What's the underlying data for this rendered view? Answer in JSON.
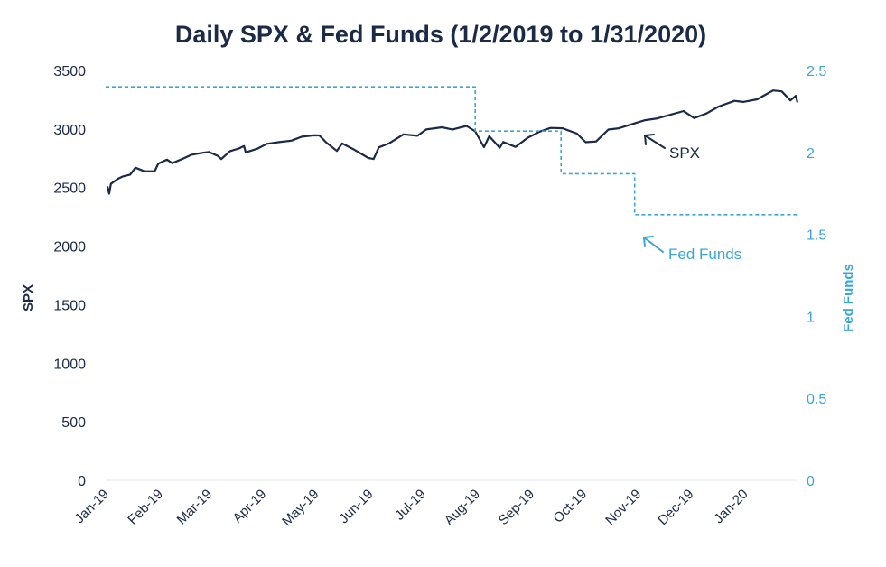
{
  "chart_data": {
    "type": "line",
    "title": "Daily SPX & Fed Funds (1/2/2019 to 1/31/2020)",
    "x_tick_labels": [
      "Jan-19",
      "Feb-19",
      "Mar-19",
      "Apr-19",
      "May-19",
      "Jun-19",
      "Jul-19",
      "Aug-19",
      "Sep-19",
      "Oct-19",
      "Nov-19",
      "Dec-19",
      "Jan-20"
    ],
    "x_range": [
      "2019-01-01",
      "2020-01-31"
    ],
    "y_left": {
      "label": "SPX",
      "ylim": [
        0,
        3500
      ],
      "ticks": [
        0,
        500,
        1000,
        1500,
        2000,
        2500,
        3000,
        3500
      ]
    },
    "y_right": {
      "label": "Fed Funds",
      "ylim": [
        0,
        2.5
      ],
      "ticks": [
        "0",
        "0.5",
        "1",
        "1.5",
        "2",
        "2.5"
      ]
    },
    "colors": {
      "spx": "#1b2a47",
      "fed": "#3aa6d8"
    },
    "series": [
      {
        "name": "SPX",
        "axis": "left",
        "style": "solid",
        "points": [
          [
            "2019-01-02",
            2510
          ],
          [
            "2019-01-03",
            2448
          ],
          [
            "2019-01-04",
            2531
          ],
          [
            "2019-01-08",
            2575
          ],
          [
            "2019-01-11",
            2596
          ],
          [
            "2019-01-15",
            2610
          ],
          [
            "2019-01-18",
            2670
          ],
          [
            "2019-01-23",
            2639
          ],
          [
            "2019-01-29",
            2640
          ],
          [
            "2019-01-31",
            2704
          ],
          [
            "2019-02-05",
            2738
          ],
          [
            "2019-02-08",
            2708
          ],
          [
            "2019-02-14",
            2745
          ],
          [
            "2019-02-19",
            2780
          ],
          [
            "2019-02-25",
            2796
          ],
          [
            "2019-03-01",
            2803
          ],
          [
            "2019-03-06",
            2771
          ],
          [
            "2019-03-08",
            2743
          ],
          [
            "2019-03-13",
            2811
          ],
          [
            "2019-03-18",
            2833
          ],
          [
            "2019-03-21",
            2854
          ],
          [
            "2019-03-22",
            2800
          ],
          [
            "2019-03-29",
            2834
          ],
          [
            "2019-04-03",
            2873
          ],
          [
            "2019-04-10",
            2888
          ],
          [
            "2019-04-17",
            2900
          ],
          [
            "2019-04-23",
            2934
          ],
          [
            "2019-04-30",
            2946
          ],
          [
            "2019-05-03",
            2945
          ],
          [
            "2019-05-07",
            2884
          ],
          [
            "2019-05-13",
            2812
          ],
          [
            "2019-05-16",
            2876
          ],
          [
            "2019-05-23",
            2822
          ],
          [
            "2019-05-31",
            2752
          ],
          [
            "2019-06-03",
            2744
          ],
          [
            "2019-06-06",
            2843
          ],
          [
            "2019-06-12",
            2879
          ],
          [
            "2019-06-20",
            2954
          ],
          [
            "2019-06-28",
            2942
          ],
          [
            "2019-07-03",
            2996
          ],
          [
            "2019-07-12",
            3014
          ],
          [
            "2019-07-18",
            2996
          ],
          [
            "2019-07-26",
            3026
          ],
          [
            "2019-07-31",
            2980
          ],
          [
            "2019-08-05",
            2845
          ],
          [
            "2019-08-08",
            2938
          ],
          [
            "2019-08-14",
            2840
          ],
          [
            "2019-08-16",
            2889
          ],
          [
            "2019-08-23",
            2847
          ],
          [
            "2019-08-30",
            2926
          ],
          [
            "2019-09-06",
            2978
          ],
          [
            "2019-09-12",
            3009
          ],
          [
            "2019-09-19",
            3006
          ],
          [
            "2019-09-27",
            2961
          ],
          [
            "2019-10-02",
            2887
          ],
          [
            "2019-10-08",
            2893
          ],
          [
            "2019-10-15",
            2995
          ],
          [
            "2019-10-21",
            3006
          ],
          [
            "2019-10-28",
            3039
          ],
          [
            "2019-11-05",
            3075
          ],
          [
            "2019-11-12",
            3091
          ],
          [
            "2019-11-19",
            3120
          ],
          [
            "2019-11-27",
            3153
          ],
          [
            "2019-12-03",
            3093
          ],
          [
            "2019-12-10",
            3132
          ],
          [
            "2019-12-17",
            3192
          ],
          [
            "2019-12-26",
            3240
          ],
          [
            "2019-12-31",
            3231
          ],
          [
            "2020-01-08",
            3253
          ],
          [
            "2020-01-17",
            3329
          ],
          [
            "2020-01-22",
            3321
          ],
          [
            "2020-01-27",
            3244
          ],
          [
            "2020-01-30",
            3283
          ],
          [
            "2020-01-31",
            3226
          ]
        ]
      },
      {
        "name": "Fed Funds",
        "axis": "right",
        "style": "dashed-step",
        "points": [
          [
            "2019-01-01",
            2.4
          ],
          [
            "2019-07-31",
            2.4
          ],
          [
            "2019-07-31",
            2.13
          ],
          [
            "2019-09-18",
            2.13
          ],
          [
            "2019-09-18",
            1.87
          ],
          [
            "2019-10-30",
            1.87
          ],
          [
            "2019-10-30",
            1.62
          ],
          [
            "2020-01-31",
            1.62
          ]
        ]
      }
    ],
    "annotations": [
      {
        "text": "SPX",
        "series": "SPX"
      },
      {
        "text": "Fed Funds",
        "series": "Fed Funds"
      }
    ],
    "grid": false,
    "legend": "none"
  }
}
